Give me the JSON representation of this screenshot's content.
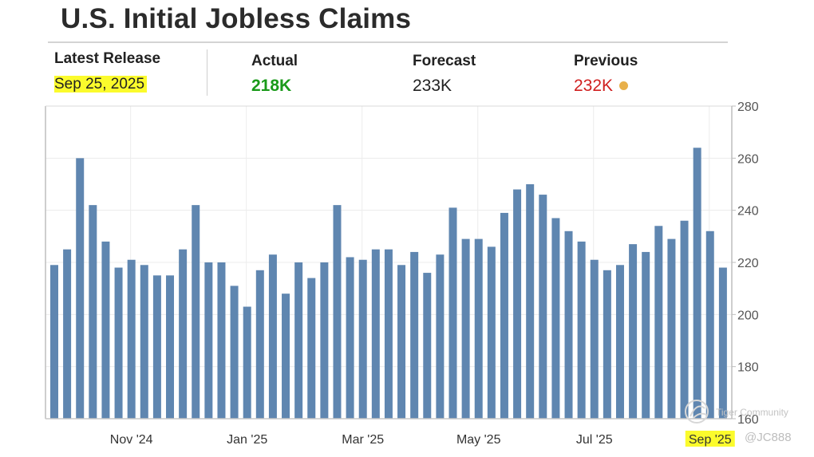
{
  "title": "U.S. Initial Jobless Claims",
  "header": {
    "latest_release": {
      "label": "Latest Release",
      "value": "Sep 25, 2025"
    },
    "actual": {
      "label": "Actual",
      "value": "218K",
      "color": "#1a9a1a"
    },
    "forecast": {
      "label": "Forecast",
      "value": "233K",
      "color": "#222222"
    },
    "previous": {
      "label": "Previous",
      "value": "232K",
      "color": "#d01f1f",
      "dot_color": "#e8b04a"
    }
  },
  "highlight_color": "#fbfb2c",
  "chart_data": {
    "type": "bar",
    "bar_color": "#5f86b0",
    "ylim": [
      160,
      280
    ],
    "yticks": [
      160,
      180,
      200,
      220,
      240,
      260,
      280
    ],
    "y_axis_side": "right",
    "grid": true,
    "xtick_labels": [
      "Nov '24",
      "Jan '25",
      "Mar '25",
      "May '25",
      "Jul '25",
      "Sep '25"
    ],
    "highlighted_xtick": "Sep '25",
    "values": [
      219,
      225,
      260,
      242,
      228,
      218,
      221,
      219,
      215,
      215,
      225,
      242,
      220,
      220,
      211,
      203,
      217,
      223,
      208,
      220,
      214,
      220,
      242,
      222,
      221,
      225,
      225,
      219,
      224,
      216,
      223,
      241,
      229,
      229,
      226,
      239,
      248,
      250,
      246,
      237,
      232,
      228,
      221,
      217,
      219,
      227,
      224,
      234,
      229,
      236,
      264,
      232,
      218
    ]
  },
  "watermark": {
    "brand": "Tiger Community",
    "handle": "@JC888"
  }
}
